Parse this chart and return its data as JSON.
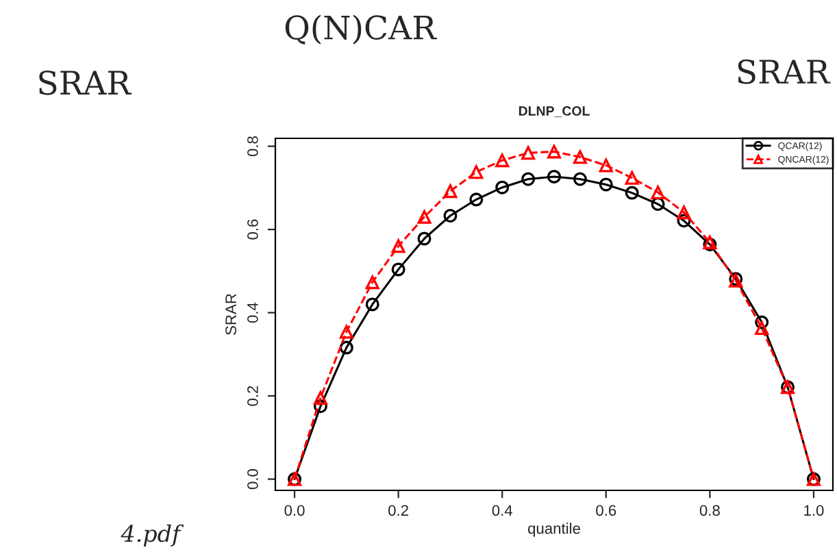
{
  "chart_data": {
    "type": "line",
    "title": "DLNP_COL",
    "xlabel": "quantile",
    "ylabel": "SRAR",
    "x": [
      0.0,
      0.05,
      0.1,
      0.15,
      0.2,
      0.25,
      0.3,
      0.35,
      0.4,
      0.45,
      0.5,
      0.55,
      0.6,
      0.65,
      0.7,
      0.75,
      0.8,
      0.85,
      0.9,
      0.95,
      1.0
    ],
    "series": [
      {
        "name": "QCAR(12)",
        "color": "#000000",
        "marker": "circle",
        "line_style": "solid",
        "values": [
          0.0,
          0.175,
          0.316,
          0.42,
          0.504,
          0.578,
          0.633,
          0.672,
          0.701,
          0.721,
          0.727,
          0.721,
          0.708,
          0.688,
          0.661,
          0.621,
          0.564,
          0.481,
          0.377,
          0.221,
          0.0
        ]
      },
      {
        "name": "QNCAR(12)",
        "color": "#ff0000",
        "marker": "triangle",
        "line_style": "dashed",
        "values": [
          0.0,
          0.195,
          0.354,
          0.473,
          0.56,
          0.63,
          0.692,
          0.738,
          0.766,
          0.784,
          0.787,
          0.774,
          0.754,
          0.724,
          0.689,
          0.641,
          0.569,
          0.477,
          0.363,
          0.221,
          0.0
        ]
      }
    ],
    "xlim": [
      -0.037,
      1.037
    ],
    "ylim": [
      -0.027,
      0.819
    ],
    "xticks": [
      {
        "value": 0,
        "label": "0.0"
      },
      0.2,
      0.4,
      0.6,
      0.8,
      {
        "value": 1,
        "label": "1.0"
      }
    ],
    "yticks": [
      {
        "value": 0,
        "label": "0.0"
      },
      0.2,
      0.4,
      0.6,
      0.8
    ],
    "grid": false,
    "legend": "top right",
    "annotations": [
      "Q(N)CAR",
      "SRAR",
      "SRAR",
      "4.pdf"
    ]
  }
}
